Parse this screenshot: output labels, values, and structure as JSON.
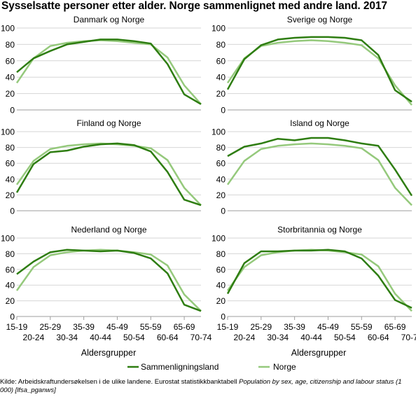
{
  "title": "Sysselsatte personer etter alder. Norge sammenlignet med andre land. 2017",
  "legend": {
    "series1": "Sammenligningsland",
    "series2": "Norge"
  },
  "xlabel": "Aldersgrupper",
  "source": {
    "prefix": "Kilde: Arbeidskraftundersøkelsen i de ulike landene. Eurostat statistikkbanktabell ",
    "italic": "Population by sex, age, citizenship and labour status (1 000) [lfsa_pganws]"
  },
  "colors": {
    "comparison": "#2e7d11",
    "norway": "#95c97c",
    "grid": "#d6d6d6"
  },
  "chart_data": {
    "type": "line",
    "categories": [
      "15-19",
      "20-24",
      "25-29",
      "30-34",
      "35-39",
      "40-44",
      "45-49",
      "50-54",
      "55-59",
      "60-64",
      "65-69",
      "70-74"
    ],
    "ylim": [
      0,
      100
    ],
    "yticks": [
      0,
      20,
      40,
      60,
      80,
      100
    ],
    "grid": true,
    "legend_position": "bottom",
    "panels": [
      {
        "title": "Danmark og Norge",
        "series": [
          {
            "name": "Sammenligningsland",
            "values": [
              46,
              63,
              72,
              80,
              83,
              86,
              86,
              84,
              81,
              56,
              19,
              7
            ]
          },
          {
            "name": "Norge",
            "values": [
              33,
              63,
              78,
              82,
              84,
              85,
              84,
              82,
              80,
              64,
              30,
              7
            ]
          }
        ]
      },
      {
        "title": "Sverige og Norge",
        "series": [
          {
            "name": "Sammenligningsland",
            "values": [
              25,
              62,
              79,
              86,
              88,
              89,
              89,
              88,
              85,
              67,
              24,
              10
            ]
          },
          {
            "name": "Norge",
            "values": [
              33,
              63,
              78,
              82,
              84,
              85,
              84,
              82,
              79,
              63,
              30,
              6
            ]
          }
        ]
      },
      {
        "title": "Finland og Norge",
        "series": [
          {
            "name": "Sammenligningsland",
            "values": [
              23,
              59,
              74,
              76,
              81,
              84,
              85,
              83,
              75,
              49,
              14,
              7
            ]
          },
          {
            "name": "Norge",
            "values": [
              33,
              63,
              78,
              82,
              84,
              85,
              84,
              82,
              79,
              64,
              29,
              7
            ]
          }
        ]
      },
      {
        "title": "Island og Norge",
        "series": [
          {
            "name": "Sammenligningsland",
            "values": [
              69,
              81,
              85,
              91,
              89,
              92,
              92,
              89,
              85,
              82,
              52,
              19
            ]
          },
          {
            "name": "Norge",
            "values": [
              33,
              63,
              78,
              82,
              84,
              85,
              84,
              82,
              79,
              64,
              29,
              7
            ]
          }
        ]
      },
      {
        "title": "Nederland og Norge",
        "series": [
          {
            "name": "Sammenligningsland",
            "values": [
              54,
              70,
              82,
              85,
              84,
              83,
              84,
              81,
              74,
              55,
              15,
              7
            ]
          },
          {
            "name": "Norge",
            "values": [
              33,
              63,
              78,
              82,
              84,
              85,
              84,
              82,
              79,
              65,
              28,
              7
            ]
          }
        ]
      },
      {
        "title": "Storbritannia og Norge",
        "series": [
          {
            "name": "Sammenligningsland",
            "values": [
              29,
              68,
              83,
              83,
              84,
              84,
              85,
              83,
              74,
              52,
              21,
              11
            ]
          },
          {
            "name": "Norge",
            "values": [
              33,
              63,
              78,
              82,
              84,
              85,
              84,
              82,
              79,
              64,
              29,
              7
            ]
          }
        ]
      }
    ]
  }
}
